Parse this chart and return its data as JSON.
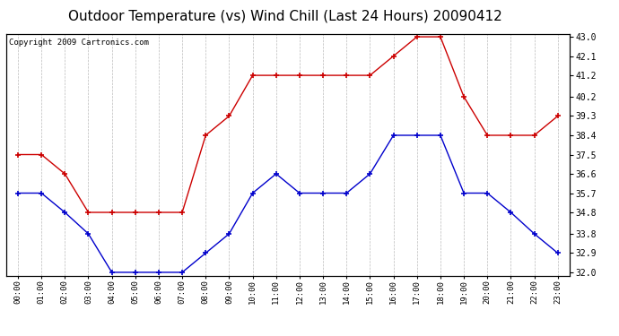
{
  "title": "Outdoor Temperature (vs) Wind Chill (Last 24 Hours) 20090412",
  "copyright": "Copyright 2009 Cartronics.com",
  "hours": [
    "00:00",
    "01:00",
    "02:00",
    "03:00",
    "04:00",
    "05:00",
    "06:00",
    "07:00",
    "08:00",
    "09:00",
    "10:00",
    "11:00",
    "12:00",
    "13:00",
    "14:00",
    "15:00",
    "16:00",
    "17:00",
    "18:00",
    "19:00",
    "20:00",
    "21:00",
    "22:00",
    "23:00"
  ],
  "temp": [
    37.5,
    37.5,
    36.6,
    34.8,
    34.8,
    34.8,
    34.8,
    34.8,
    38.4,
    39.3,
    41.2,
    41.2,
    41.2,
    41.2,
    41.2,
    41.2,
    42.1,
    43.0,
    43.0,
    40.2,
    38.4,
    38.4,
    38.4,
    39.3
  ],
  "windchill": [
    35.7,
    35.7,
    34.8,
    33.8,
    32.0,
    32.0,
    32.0,
    32.0,
    32.9,
    33.8,
    35.7,
    36.6,
    35.7,
    35.7,
    35.7,
    36.6,
    38.4,
    38.4,
    38.4,
    35.7,
    35.7,
    34.8,
    33.8,
    32.9
  ],
  "temp_color": "#cc0000",
  "windchill_color": "#0000cc",
  "ylim_min": 32.0,
  "ylim_max": 43.0,
  "yticks": [
    32.0,
    32.9,
    33.8,
    34.8,
    35.7,
    36.6,
    37.5,
    38.4,
    39.3,
    40.2,
    41.2,
    42.1,
    43.0
  ],
  "bg_color": "#ffffff",
  "grid_color": "#bbbbbb",
  "title_fontsize": 11,
  "copyright_fontsize": 6.5
}
